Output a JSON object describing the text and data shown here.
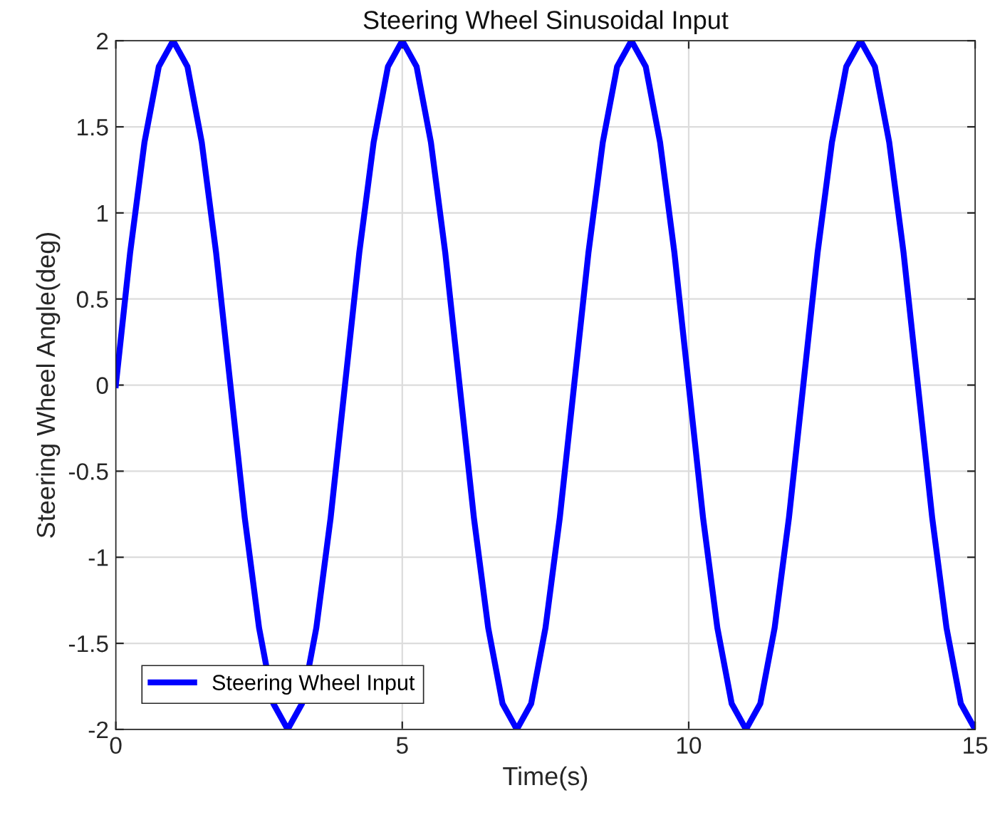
{
  "chart_data": {
    "type": "line",
    "title": "Steering Wheel Sinusoidal Input",
    "xlabel": "Time(s)",
    "ylabel": "Steering Wheel Angle(deg)",
    "x": [
      0,
      0.25,
      0.5,
      0.75,
      1,
      1.25,
      1.5,
      1.75,
      2,
      2.25,
      2.5,
      2.75,
      3,
      3.25,
      3.5,
      3.75,
      4,
      4.25,
      4.5,
      4.75,
      5,
      5.25,
      5.5,
      5.75,
      6,
      6.25,
      6.5,
      6.75,
      7,
      7.25,
      7.5,
      7.75,
      8,
      8.25,
      8.5,
      8.75,
      9,
      9.25,
      9.5,
      9.75,
      10,
      10.25,
      10.5,
      10.75,
      11,
      11.25,
      11.5,
      11.75,
      12,
      12.25,
      12.5,
      12.75,
      13,
      13.25,
      13.5,
      13.75,
      14,
      14.25,
      14.5,
      14.75,
      15
    ],
    "series": [
      {
        "name": "Steering Wheel Input",
        "color": "#0000ff",
        "values": [
          0,
          0.77,
          1.41,
          1.85,
          2,
          1.85,
          1.41,
          0.77,
          0,
          -0.77,
          -1.41,
          -1.85,
          -2,
          -1.85,
          -1.41,
          -0.77,
          0,
          0.77,
          1.41,
          1.85,
          2,
          1.85,
          1.41,
          0.77,
          0,
          -0.77,
          -1.41,
          -1.85,
          -2,
          -1.85,
          -1.41,
          -0.77,
          0,
          0.77,
          1.41,
          1.85,
          2,
          1.85,
          1.41,
          0.77,
          0,
          -0.77,
          -1.41,
          -1.85,
          -2,
          -1.85,
          -1.41,
          -0.77,
          0,
          0.77,
          1.41,
          1.85,
          2,
          1.85,
          1.41,
          0.77,
          0,
          -0.77,
          -1.41,
          -1.85,
          -2
        ]
      }
    ],
    "xlim": [
      0,
      15
    ],
    "ylim": [
      -2,
      2
    ],
    "xticks": [
      0,
      5,
      10,
      15
    ],
    "yticks": [
      -2,
      -1.5,
      -1,
      -0.5,
      0,
      0.5,
      1,
      1.5,
      2
    ],
    "grid": true,
    "legend": "bottom left",
    "line_style": "solid",
    "marker": "none"
  }
}
